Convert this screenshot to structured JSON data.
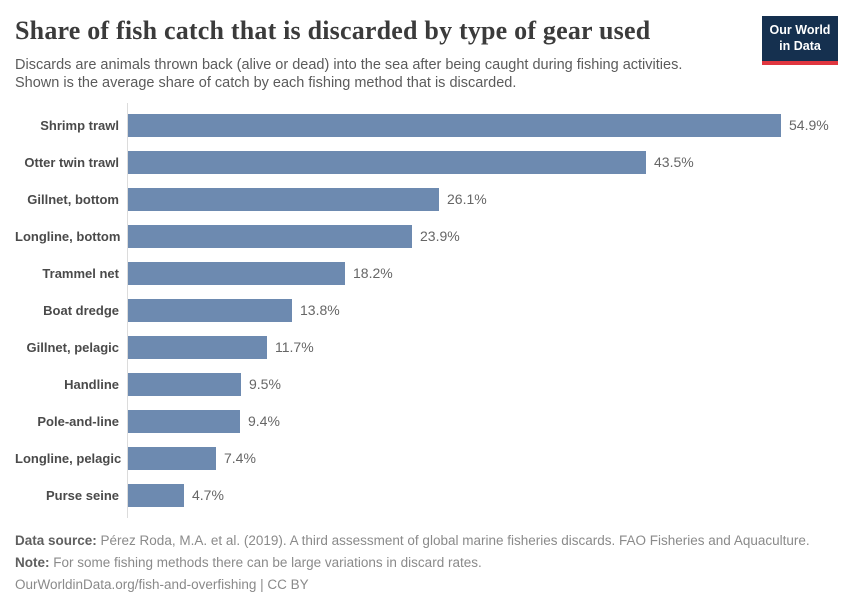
{
  "header": {
    "title": "Share of fish catch that is discarded by type of gear used",
    "subtitle_lines": [
      "Discards are animals thrown back (alive or dead) into the sea after being caught during fishing activities.",
      "Shown is the average share of catch by each fishing method that is discarded."
    ],
    "logo": {
      "line1": "Our World",
      "line2": "in Data",
      "bg_color": "#15304f",
      "accent_color": "#e0363f"
    }
  },
  "chart_data": {
    "type": "bar",
    "orientation": "horizontal",
    "title": "Share of fish catch that is discarded by type of gear used",
    "categories": [
      "Shrimp trawl",
      "Otter twin trawl",
      "Gillnet, bottom",
      "Longline, bottom",
      "Trammel net",
      "Boat dredge",
      "Gillnet, pelagic",
      "Handline",
      "Pole-and-line",
      "Longline, pelagic",
      "Purse seine"
    ],
    "values": [
      54.9,
      43.5,
      26.1,
      23.9,
      18.2,
      13.8,
      11.7,
      9.5,
      9.4,
      7.4,
      4.7
    ],
    "value_suffix": "%",
    "xlabel": "",
    "ylabel": "",
    "xlim": [
      0,
      60
    ],
    "grid": false,
    "legend": "none",
    "bar_color": "#6d8ab0",
    "value_label_color": "#666666",
    "category_label_color": "#4a4a4a"
  },
  "footer": {
    "data_source_label": "Data source:",
    "data_source_text": " Pérez Roda, M.A. et al. (2019). A third assessment of global marine fisheries discards. FAO Fisheries and Aquaculture.",
    "note_label": "Note:",
    "note_text": " For some fishing methods there can be large variations in discard rates.",
    "citation": "OurWorldinData.org/fish-and-overfishing | CC BY"
  }
}
